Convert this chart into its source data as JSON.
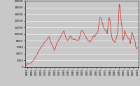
{
  "title": "",
  "background_color": "#c8c8c8",
  "line_color": "#cc2222",
  "ylim": [
    0,
    20000
  ],
  "yticks": [
    0,
    2000,
    4000,
    6000,
    8000,
    10000,
    12000,
    14000,
    16000,
    18000,
    20000
  ],
  "xlim": [
    1888,
    2011
  ],
  "xtick_start": 1890,
  "xtick_end": 2011,
  "xtick_step": 5,
  "years": [
    1889,
    1890,
    1891,
    1892,
    1893,
    1894,
    1895,
    1896,
    1897,
    1898,
    1899,
    1900,
    1901,
    1902,
    1903,
    1904,
    1905,
    1906,
    1907,
    1908,
    1909,
    1910,
    1911,
    1912,
    1913,
    1914,
    1915,
    1920,
    1921,
    1922,
    1923,
    1924,
    1925,
    1926,
    1927,
    1928,
    1929,
    1930,
    1931,
    1932,
    1933,
    1934,
    1935,
    1936,
    1937,
    1938,
    1939,
    1946,
    1947,
    1948,
    1949,
    1950,
    1951,
    1952,
    1953,
    1954,
    1955,
    1956,
    1957,
    1958,
    1959,
    1960,
    1961,
    1962,
    1963,
    1964,
    1965,
    1966,
    1967,
    1968,
    1969,
    1970,
    1971,
    1972,
    1973,
    1974,
    1975,
    1976,
    1977,
    1978,
    1979,
    1980,
    1981,
    1982,
    1983,
    1984,
    1985,
    1986,
    1987,
    1988,
    1989,
    1990,
    1991,
    1992,
    1993,
    1994,
    1995,
    1996,
    1997,
    1998,
    1999,
    2000,
    2001,
    2002,
    2003,
    2004,
    2005,
    2006,
    2007,
    2008,
    2009,
    2010
  ],
  "attendances": [
    500,
    1200,
    1000,
    900,
    1000,
    1200,
    1500,
    1800,
    2000,
    2500,
    3000,
    3500,
    3800,
    4500,
    5000,
    5500,
    6000,
    6200,
    6500,
    7000,
    7500,
    7800,
    8000,
    8500,
    9000,
    9200,
    8000,
    5000,
    6000,
    7000,
    7500,
    8000,
    8500,
    9000,
    9500,
    10000,
    10500,
    11000,
    10000,
    9000,
    8500,
    8000,
    8500,
    9000,
    9500,
    9000,
    8500,
    8000,
    9000,
    10000,
    11000,
    11000,
    10500,
    10000,
    9500,
    9000,
    8500,
    8000,
    8000,
    7500,
    8000,
    8000,
    9000,
    9500,
    9000,
    9500,
    10000,
    10000,
    11000,
    13000,
    15000,
    15000,
    14000,
    13000,
    12000,
    11500,
    11000,
    11000,
    10000,
    13000,
    15000,
    14000,
    11000,
    9000,
    8000,
    8000,
    7500,
    8000,
    9000,
    10000,
    13000,
    19000,
    18000,
    14000,
    12000,
    8000,
    9000,
    11000,
    10000,
    9500,
    9000,
    8500,
    8500,
    7000,
    9000,
    10500,
    9500,
    8500,
    8000,
    6000,
    5500,
    6000
  ]
}
